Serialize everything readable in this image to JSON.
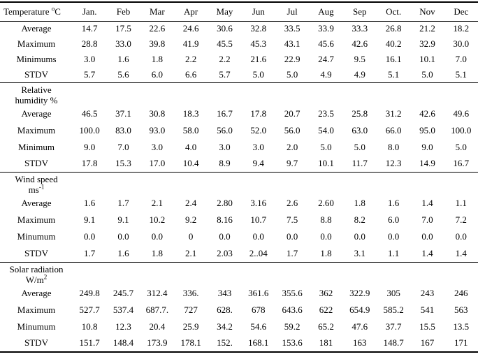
{
  "page": {
    "background": "#ffffff",
    "text_color": "#000000",
    "rule_color": "#000000"
  },
  "table": {
    "header": {
      "corner": {
        "base": "Temperature ",
        "sup": "o",
        "tail": "C"
      },
      "months": [
        "Jan.",
        "Feb",
        "Mar",
        "Apr",
        "May",
        "Jun",
        "Jul",
        "Aug",
        "Sep",
        "Oct.",
        "Nov",
        "Dec"
      ]
    },
    "sections": [
      {
        "id": "temperature",
        "rows": [
          {
            "label": "Average",
            "values": [
              "14.7",
              "17.5",
              "22.6",
              "24.6",
              "30.6",
              "32.8",
              "33.5",
              "33.9",
              "33.3",
              "26.8",
              "21.2",
              "18.2"
            ]
          },
          {
            "label": "Maximum",
            "values": [
              "28.8",
              "33.0",
              "39.8",
              "41.9",
              "45.5",
              "45.3",
              "43.1",
              "45.6",
              "42.6",
              "40.2",
              "32.9",
              "30.0"
            ]
          },
          {
            "label": "Minimums",
            "values": [
              "3.0",
              "1.6",
              "1.8",
              "2.2",
              "2.2",
              "21.6",
              "22.9",
              "24.7",
              "9.5",
              "16.1",
              "10.1",
              "7.0"
            ]
          },
          {
            "label": "STDV",
            "values": [
              "5.7",
              "5.6",
              "6.0",
              "6.6",
              "5.7",
              "5.0",
              "5.0",
              "4.9",
              "4.9",
              "5.1",
              "5.0",
              "5.1"
            ]
          }
        ]
      },
      {
        "id": "humidity",
        "label_lines": [
          {
            "base": "Relative"
          },
          {
            "base": "humidity %"
          }
        ],
        "rows": [
          {
            "label": "Average",
            "values": [
              "46.5",
              "37.1",
              "30.8",
              "18.3",
              "16.7",
              "17.8",
              "20.7",
              "23.5",
              "25.8",
              "31.2",
              "42.6",
              "49.6"
            ]
          },
          {
            "label": "Maximum",
            "values": [
              "100.0",
              "83.0",
              "93.0",
              "58.0",
              "56.0",
              "52.0",
              "56.0",
              "54.0",
              "63.0",
              "66.0",
              "95.0",
              "100.0"
            ]
          },
          {
            "label": "Minimum",
            "values": [
              "9.0",
              "7.0",
              "3.0",
              "4.0",
              "3.0",
              "3.0",
              "2.0",
              "5.0",
              "5.0",
              "8.0",
              "9.0",
              "5.0"
            ]
          },
          {
            "label": "STDV",
            "values": [
              "17.8",
              "15.3",
              "17.0",
              "10.4",
              "8.9",
              "9.4",
              "9.7",
              "10.1",
              "11.7",
              "12.3",
              "14.9",
              "16.7"
            ]
          }
        ]
      },
      {
        "id": "wind",
        "label_lines": [
          {
            "base": "Wind speed"
          },
          {
            "base": "ms",
            "sup": "-1"
          }
        ],
        "rows": [
          {
            "label": "Average",
            "values": [
              "1.6",
              "1.7",
              "2.1",
              "2.4",
              "2.80",
              "3.16",
              "2.6",
              "2.60",
              "1.8",
              "1.6",
              "1.4",
              "1.1"
            ]
          },
          {
            "label": "Maximum",
            "values": [
              "9.1",
              "9.1",
              "10.2",
              "9.2",
              "8.16",
              "10.7",
              "7.5",
              "8.8",
              "8.2",
              "6.0",
              "7.0",
              "7.2"
            ]
          },
          {
            "label": "Minumum",
            "values": [
              "0.0",
              "0.0",
              "0.0",
              "0",
              "0.0",
              "0.0",
              "0.0",
              "0.0",
              "0.0",
              "0.0",
              "0.0",
              "0.0"
            ]
          },
          {
            "label": "STDV",
            "values": [
              "1.7",
              "1.6",
              "1.8",
              "2.1",
              "2.03",
              "2..04",
              "1.7",
              "1.8",
              "3.1",
              "1.1",
              "1.4",
              "1.4"
            ]
          }
        ]
      },
      {
        "id": "solar",
        "label_lines": [
          {
            "base": "Solar radiation"
          },
          {
            "base": "W/m",
            "sup": "2"
          }
        ],
        "rows": [
          {
            "label": "Average",
            "values": [
              "249.8",
              "245.7",
              "312.4",
              "336.",
              "343",
              "361.6",
              "355.6",
              "362",
              "322.9",
              "305",
              "243",
              "246"
            ]
          },
          {
            "label": "Maximum",
            "values": [
              "527.7",
              "537.4",
              "687.7.",
              "727",
              "628.",
              "678",
              "643.6",
              "622",
              "654.9",
              "585.2",
              "541",
              "563"
            ]
          },
          {
            "label": "Minumum",
            "values": [
              "10.8",
              "12.3",
              "20.4",
              "25.9",
              "34.2",
              "54.6",
              "59.2",
              "65.2",
              "47.6",
              "37.7",
              "15.5",
              "13.5"
            ]
          },
          {
            "label": "STDV",
            "values": [
              "151.7",
              "148.4",
              "173.9",
              "178.1",
              "152.",
              "168.1",
              "153.6",
              "181",
              "163",
              "148.7",
              "167",
              "171"
            ]
          }
        ]
      }
    ]
  }
}
